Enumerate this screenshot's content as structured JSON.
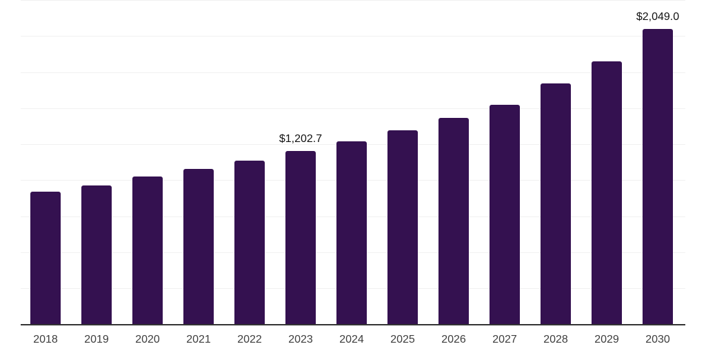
{
  "chart_data": {
    "type": "bar",
    "title": "",
    "xlabel": "",
    "ylabel": "",
    "categories": [
      "2018",
      "2019",
      "2020",
      "2021",
      "2022",
      "2023",
      "2024",
      "2025",
      "2026",
      "2027",
      "2028",
      "2029",
      "2030"
    ],
    "values": [
      920,
      963,
      1028,
      1076,
      1137,
      1202.7,
      1271,
      1346,
      1431,
      1522,
      1670,
      1824,
      2049
    ],
    "value_prefix": "$",
    "data_labels": [
      {
        "category": "2023",
        "text": "$1,202.7"
      },
      {
        "category": "2030",
        "text": "$2,049.0"
      }
    ],
    "ylim": [
      0,
      2250
    ],
    "gridline_step": 250,
    "grid": true,
    "legend": false,
    "colors": {
      "bar": "#341150",
      "gridline": "#f1f1f1",
      "axis_line": "#333333",
      "tick_label": "#3d3d3d",
      "data_label": "#111111",
      "background": "#ffffff"
    }
  }
}
